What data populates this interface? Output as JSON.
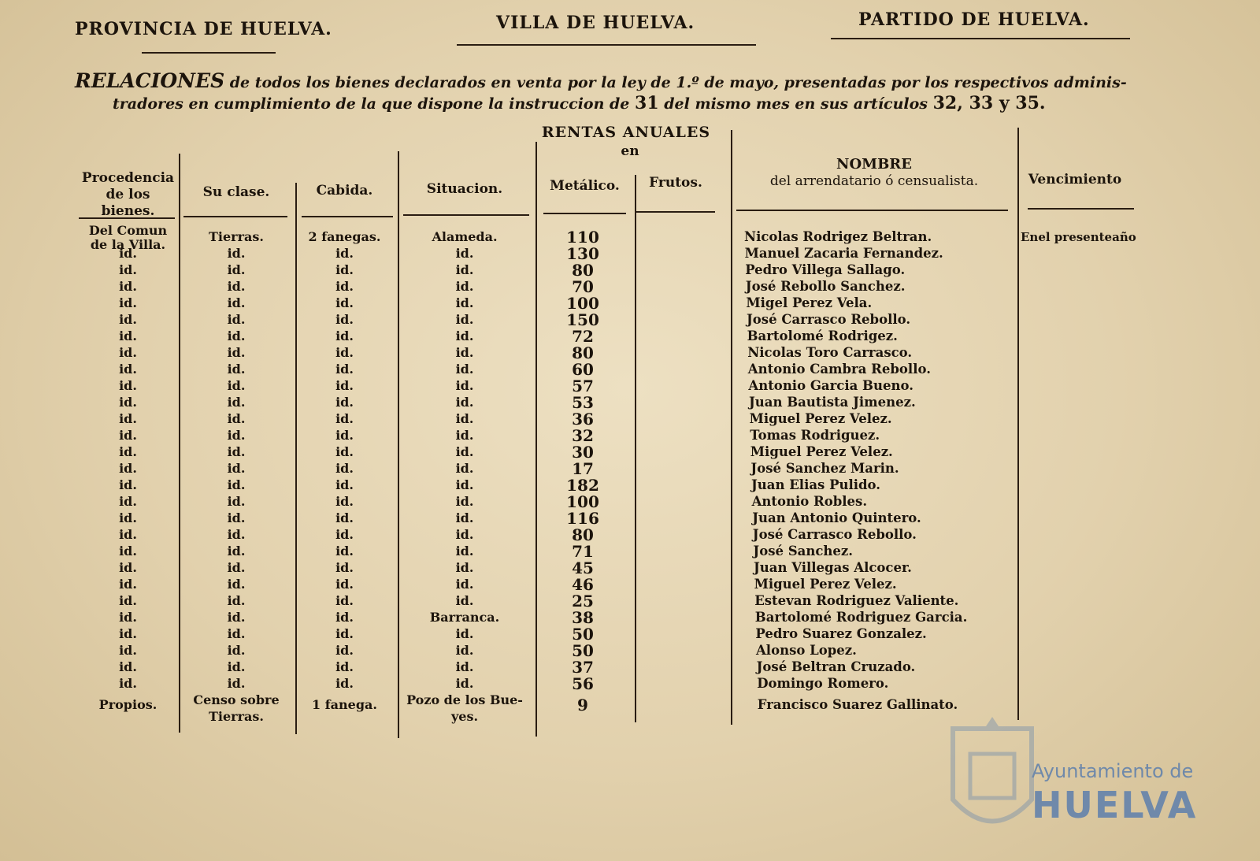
{
  "header": {
    "left": "PROVINCIA DE HUELVA.",
    "center": "VILLA DE HUELVA.",
    "right": "PARTIDO DE HUELVA."
  },
  "intro": {
    "cap": "RELACIONES",
    "text1": " de todos los bienes declarados en venta por la ley de 1.º de mayo, presentadas por los respectivos adminis-",
    "text2": "tradores en cumplimiento de la que dispone la instruccion de ",
    "num1": "31",
    "text3": " del mismo mes en sus artículos ",
    "nums2": "32, 33 y 35."
  },
  "columns": {
    "procedencia": "Procedencia de los bienes.",
    "clase": "Su clase.",
    "cabida": "Cabida.",
    "situacion": "Situacion.",
    "rentas_title": "RENTAS ANUALES",
    "rentas_en": "en",
    "metalico": "Metálico.",
    "frutos": "Frutos.",
    "nombre_title": "NOMBRE",
    "nombre_sub": "del arrendatario ó censualista.",
    "vencimiento": "Vencimiento"
  },
  "rows": [
    {
      "proc": "Del Comun de la Villa.",
      "clase": "Tierras.",
      "cabida": "2 fanegas.",
      "sit": "Alameda.",
      "met": "110",
      "nombre": "Nicolas Rodrigez Beltran.",
      "venc": "Enel presenteaño"
    },
    {
      "proc": "id.",
      "clase": "id.",
      "cabida": "id.",
      "sit": "id.",
      "met": "130",
      "nombre": "Manuel Zacaria Fernandez."
    },
    {
      "proc": "id.",
      "clase": "id.",
      "cabida": "id.",
      "sit": "id.",
      "met": "80",
      "nombre": "Pedro Villega Sallago."
    },
    {
      "proc": "id.",
      "clase": "id.",
      "cabida": "id.",
      "sit": "id.",
      "met": "70",
      "nombre": "José Rebollo Sanchez."
    },
    {
      "proc": "id.",
      "clase": "id.",
      "cabida": "id.",
      "sit": "id.",
      "met": "100",
      "nombre": "Migel Perez Vela."
    },
    {
      "proc": "id.",
      "clase": "id.",
      "cabida": "id.",
      "sit": "id.",
      "met": "150",
      "nombre": "José Carrasco Rebollo."
    },
    {
      "proc": "id.",
      "clase": "id.",
      "cabida": "id.",
      "sit": "id.",
      "met": "72",
      "nombre": "Bartolomé Rodrigez."
    },
    {
      "proc": "id.",
      "clase": "id.",
      "cabida": "id.",
      "sit": "id.",
      "met": "80",
      "nombre": "Nicolas Toro Carrasco."
    },
    {
      "proc": "id.",
      "clase": "id.",
      "cabida": "id.",
      "sit": "id.",
      "met": "60",
      "nombre": "Antonio Cambra Rebollo."
    },
    {
      "proc": "id.",
      "clase": "id.",
      "cabida": "id.",
      "sit": "id.",
      "met": "57",
      "nombre": "Antonio Garcia Bueno."
    },
    {
      "proc": "id.",
      "clase": "id.",
      "cabida": "id.",
      "sit": "id.",
      "met": "53",
      "nombre": "Juan Bautista Jimenez."
    },
    {
      "proc": "id.",
      "clase": "id.",
      "cabida": "id.",
      "sit": "id.",
      "met": "36",
      "nombre": "Miguel Perez Velez."
    },
    {
      "proc": "id.",
      "clase": "id.",
      "cabida": "id.",
      "sit": "id.",
      "met": "32",
      "nombre": "Tomas Rodriguez."
    },
    {
      "proc": "id.",
      "clase": "id.",
      "cabida": "id.",
      "sit": "id.",
      "met": "30",
      "nombre": "Miguel Perez Velez."
    },
    {
      "proc": "id.",
      "clase": "id.",
      "cabida": "id.",
      "sit": "id.",
      "met": "17",
      "nombre": "José Sanchez Marin."
    },
    {
      "proc": "id.",
      "clase": "id.",
      "cabida": "id.",
      "sit": "id.",
      "met": "182",
      "nombre": "Juan Elias Pulido."
    },
    {
      "proc": "id.",
      "clase": "id.",
      "cabida": "id.",
      "sit": "id.",
      "met": "100",
      "nombre": "Antonio Robles."
    },
    {
      "proc": "id.",
      "clase": "id.",
      "cabida": "id.",
      "sit": "id.",
      "met": "116",
      "nombre": "Juan Antonio Quintero."
    },
    {
      "proc": "id.",
      "clase": "id.",
      "cabida": "id.",
      "sit": "id.",
      "met": "80",
      "nombre": "José Carrasco Rebollo."
    },
    {
      "proc": "id.",
      "clase": "id.",
      "cabida": "id.",
      "sit": "id.",
      "met": "71",
      "nombre": "José Sanchez."
    },
    {
      "proc": "id.",
      "clase": "id.",
      "cabida": "id.",
      "sit": "id.",
      "met": "45",
      "nombre": "Juan Villegas Alcocer."
    },
    {
      "proc": "id.",
      "clase": "id.",
      "cabida": "id.",
      "sit": "id.",
      "met": "46",
      "nombre": "Miguel Perez Velez."
    },
    {
      "proc": "id.",
      "clase": "id.",
      "cabida": "id.",
      "sit": "id.",
      "met": "25",
      "nombre": "Estevan Rodriguez Valiente."
    },
    {
      "proc": "id.",
      "clase": "id.",
      "cabida": "id.",
      "sit": "Barranca.",
      "met": "38",
      "nombre": "Bartolomé Rodriguez Garcia."
    },
    {
      "proc": "id.",
      "clase": "id.",
      "cabida": "id.",
      "sit": "id.",
      "met": "50",
      "nombre": "Pedro Suarez Gonzalez."
    },
    {
      "proc": "id.",
      "clase": "id.",
      "cabida": "id.",
      "sit": "id.",
      "met": "50",
      "nombre": "Alonso Lopez."
    },
    {
      "proc": "id.",
      "clase": "id.",
      "cabida": "id.",
      "sit": "id.",
      "met": "37",
      "nombre": "José Beltran Cruzado."
    },
    {
      "proc": "id.",
      "clase": "id.",
      "cabida": "id.",
      "sit": "id.",
      "met": "56",
      "nombre": "Domingo Romero."
    },
    {
      "proc": "Propios.",
      "clase": "Censo sobre Tierras.",
      "cabida": "1 fanega.",
      "sit": "Pozo de los Bue- yes.",
      "met": "9",
      "nombre": "Francisco Suarez Gallinato."
    }
  ],
  "watermark": {
    "line1": "Ayuntamiento de",
    "line2": "HUELVA"
  }
}
